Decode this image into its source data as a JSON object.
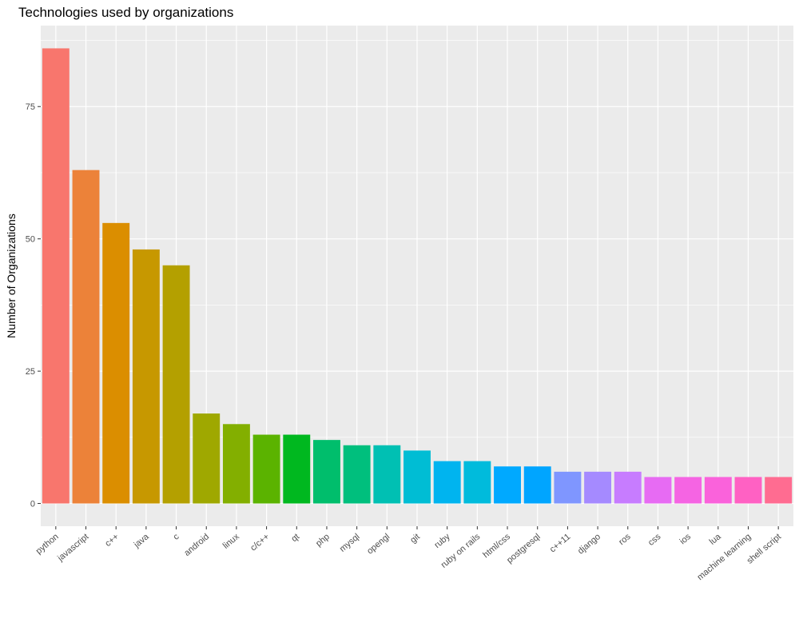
{
  "chart_data": {
    "type": "bar",
    "title": "Technologies used by organizations",
    "xlabel": "",
    "ylabel": "Number of Organizations",
    "categories": [
      "python",
      "javascript",
      "c++",
      "java",
      "c",
      "android",
      "linux",
      "c/c++",
      "qt",
      "php",
      "mysql",
      "opengl",
      "git",
      "ruby",
      "ruby on rails",
      "html/css",
      "postgresql",
      "c++11",
      "django",
      "ros",
      "css",
      "ios",
      "lua",
      "machine learning",
      "shell script"
    ],
    "values": [
      86,
      63,
      53,
      48,
      45,
      17,
      15,
      13,
      13,
      12,
      11,
      11,
      10,
      8,
      8,
      7,
      7,
      6,
      6,
      6,
      5,
      5,
      5,
      5,
      5
    ],
    "yticks": [
      0,
      25,
      50,
      75
    ],
    "ylim": [
      -4.3,
      90.3
    ],
    "grid": true,
    "legend": "none",
    "colors": [
      "#F8766D",
      "#EC8239",
      "#DB8E00",
      "#C79800",
      "#B4A000",
      "#9FA800",
      "#83AF00",
      "#5BB300",
      "#00B81F",
      "#00BE6C",
      "#00BF7D",
      "#00C0B3",
      "#00BDD4",
      "#00B4EF",
      "#00BBDC",
      "#00A9FF",
      "#00A5FF",
      "#7F96FF",
      "#A58AFF",
      "#C77CFF",
      "#E76BF3",
      "#F564E3",
      "#FA62DB",
      "#FF61C3",
      "#FF6C91"
    ],
    "panel_bg": "#EBEBEB",
    "grid_color": "#FFFFFF"
  }
}
